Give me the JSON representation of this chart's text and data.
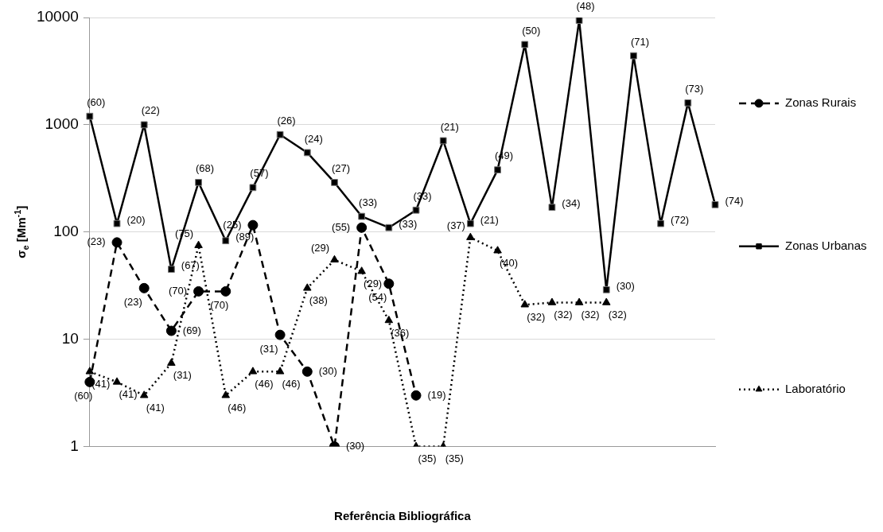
{
  "chart_data": {
    "type": "line",
    "xlabel": "Referência Bibliográfica",
    "ylabel": "σ$_{e}$ [Mm$^{-1}$]",
    "categories": [
      null,
      null,
      null,
      null,
      null,
      null,
      null,
      null,
      null,
      null,
      null,
      null,
      null,
      null,
      null,
      null,
      null,
      null,
      null,
      null,
      null,
      null,
      null,
      null
    ],
    "log": "y",
    "ylim": [
      1,
      10000
    ],
    "yticks": [
      1,
      10,
      100,
      1000,
      10000
    ],
    "grid": "y",
    "legend": "right",
    "series": [
      {
        "name": "Zonas Rurais",
        "color": "#000000",
        "marker": "circle",
        "line_style": "dashed",
        "values": [
          4,
          80,
          30,
          12,
          28,
          28,
          116,
          11,
          5,
          1,
          110,
          33,
          3,
          null,
          null,
          null,
          null,
          null,
          null,
          null,
          null,
          null,
          null,
          null
        ]
      },
      {
        "name": "Zonas Urbanas",
        "color": "#000000",
        "marker": "square",
        "line_style": "solid",
        "values": [
          1200,
          120,
          1000,
          45,
          290,
          83,
          260,
          810,
          550,
          290,
          140,
          110,
          160,
          710,
          120,
          380,
          5600,
          170,
          9400,
          29,
          4400,
          120,
          1600,
          180
        ]
      },
      {
        "name": "Laboratório",
        "color": "#000000",
        "marker": "triangle",
        "line_style": "dotted",
        "values": [
          5,
          4,
          3,
          6,
          75,
          3,
          5,
          5,
          30,
          55,
          43,
          15,
          1,
          1,
          89,
          67,
          21,
          22,
          22,
          22,
          null,
          null,
          null,
          null
        ]
      }
    ],
    "annotations": [
      "(60)",
      "(23)",
      "(23)",
      "(69)",
      "(70)",
      "(70)",
      "(25)",
      "(31)",
      "(30)",
      "(30)",
      "(55)",
      "(54)",
      "(19)",
      "(60)",
      "(20)",
      "(22)",
      "(67)",
      "(68)",
      "(89)",
      "(57)",
      "(26)",
      "(24)",
      "(27)",
      "(33)",
      "(33)",
      "(33)",
      "(21)",
      "(21)",
      "(49)",
      "(50)",
      "(34)",
      "(48)",
      "(30)",
      "(71)",
      "(72)",
      "(73)",
      "(74)",
      "(41)",
      "(41)",
      "(41)",
      "(31)",
      "(75)",
      "(46)",
      "(46)",
      "(46)",
      "(38)",
      "(29)",
      "(29)",
      "(36)",
      "(35)",
      "(35)",
      "(37)",
      "(40)",
      "(32)",
      "(32)",
      "(32)",
      "(32)"
    ]
  }
}
